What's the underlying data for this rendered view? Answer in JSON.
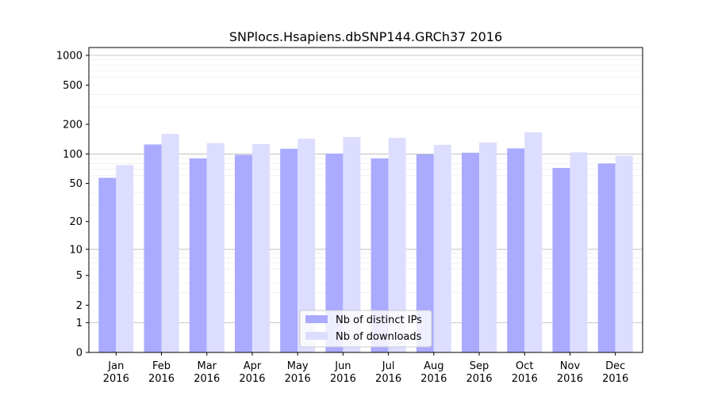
{
  "chart_data": {
    "type": "bar",
    "title": "SNPlocs.Hsapiens.dbSNP144.GRCh37 2016",
    "xlabel": "",
    "ylabel": "",
    "scale": "log1p",
    "ylim": [
      0,
      1200
    ],
    "yticks": [
      0,
      1,
      2,
      5,
      10,
      20,
      50,
      100,
      200,
      500,
      1000
    ],
    "ytick_labels": [
      "0",
      "1",
      "2",
      "5",
      "10",
      "20",
      "50",
      "100",
      "200",
      "500",
      "1000"
    ],
    "categories": [
      [
        "Jan",
        "2016"
      ],
      [
        "Feb",
        "2016"
      ],
      [
        "Mar",
        "2016"
      ],
      [
        "Apr",
        "2016"
      ],
      [
        "May",
        "2016"
      ],
      [
        "Jun",
        "2016"
      ],
      [
        "Jul",
        "2016"
      ],
      [
        "Aug",
        "2016"
      ],
      [
        "Sep",
        "2016"
      ],
      [
        "Oct",
        "2016"
      ],
      [
        "Nov",
        "2016"
      ],
      [
        "Dec",
        "2016"
      ]
    ],
    "series": [
      {
        "name": "Nb of distinct IPs",
        "color": "#aaaaff",
        "values": [
          57,
          125,
          90,
          98,
          113,
          101,
          90,
          99,
          103,
          114,
          72,
          80
        ]
      },
      {
        "name": "Nb of downloads",
        "color": "#ddddff",
        "values": [
          77,
          160,
          129,
          126,
          143,
          149,
          146,
          124,
          131,
          166,
          104,
          96
        ]
      }
    ],
    "grid": true,
    "legend": "bottom-center"
  }
}
